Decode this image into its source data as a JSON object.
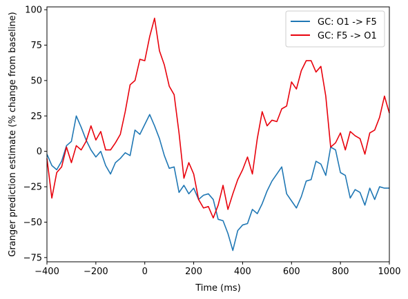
{
  "chart_data": {
    "type": "line",
    "title": "",
    "xlabel": "Time (ms)",
    "ylabel": "Granger prediction estimate (% change from baseline)",
    "xlim": [
      -400,
      1000
    ],
    "ylim": [
      -78,
      102
    ],
    "xticks": [
      -400,
      -200,
      0,
      200,
      400,
      600,
      800,
      1000
    ],
    "xtick_labels": [
      "−400",
      "−200",
      "0",
      "200",
      "400",
      "600",
      "800",
      "1000"
    ],
    "yticks": [
      -75,
      -50,
      -25,
      0,
      25,
      50,
      75,
      100
    ],
    "ytick_labels": [
      "−75",
      "−50",
      "−25",
      "0",
      "25",
      "50",
      "75",
      "100"
    ],
    "grid": false,
    "legend_position": "top-right",
    "x": [
      -400,
      -380,
      -360,
      -340,
      -320,
      -300,
      -280,
      -260,
      -240,
      -220,
      -200,
      -180,
      -160,
      -140,
      -120,
      -100,
      -80,
      -60,
      -40,
      -20,
      0,
      20,
      40,
      60,
      80,
      100,
      120,
      140,
      160,
      180,
      200,
      220,
      240,
      260,
      280,
      300,
      320,
      340,
      360,
      380,
      400,
      420,
      440,
      460,
      480,
      500,
      520,
      540,
      560,
      580,
      600,
      620,
      640,
      660,
      680,
      700,
      720,
      740,
      760,
      780,
      800,
      820,
      840,
      860,
      880,
      900,
      920,
      940,
      960,
      980,
      1000
    ],
    "series": [
      {
        "name": "GC: O1 -> F5",
        "color": "#1f77b4",
        "values": [
          -2,
          -10,
          -13,
          -7,
          4,
          7,
          25,
          17,
          8,
          1,
          -4,
          0,
          -10,
          -16,
          -8,
          -5,
          -1,
          -3,
          15,
          12,
          19,
          26,
          18,
          9,
          -3,
          -12,
          -11,
          -29,
          -24,
          -30,
          -26,
          -34,
          -31,
          -30,
          -34,
          -48,
          -49,
          -58,
          -70,
          -56,
          -52,
          -51,
          -41,
          -44,
          -37,
          -28,
          -21,
          -16,
          -11,
          -30,
          -35,
          -40,
          -32,
          -21,
          -20,
          -7,
          -9,
          -17,
          3,
          1,
          -15,
          -17,
          -33,
          -27,
          -29,
          -38,
          -26,
          -34,
          -25,
          -26,
          -26
        ]
      },
      {
        "name": "GC: F5 -> O1",
        "color": "#e8000b",
        "values": [
          -5,
          -33,
          -15,
          -11,
          3,
          -8,
          4,
          1,
          7,
          18,
          8,
          14,
          1,
          1,
          6,
          12,
          28,
          47,
          50,
          65,
          64,
          81,
          94,
          71,
          61,
          46,
          40,
          13,
          -19,
          -8,
          -16,
          -34,
          -40,
          -39,
          -47,
          -38,
          -24,
          -41,
          -30,
          -20,
          -13,
          -4,
          -16,
          9,
          28,
          18,
          22,
          21,
          30,
          32,
          49,
          44,
          57,
          64,
          64,
          56,
          60,
          39,
          3,
          6,
          13,
          1,
          14,
          11,
          9,
          -2,
          13,
          15,
          24,
          39,
          27
        ]
      }
    ]
  }
}
